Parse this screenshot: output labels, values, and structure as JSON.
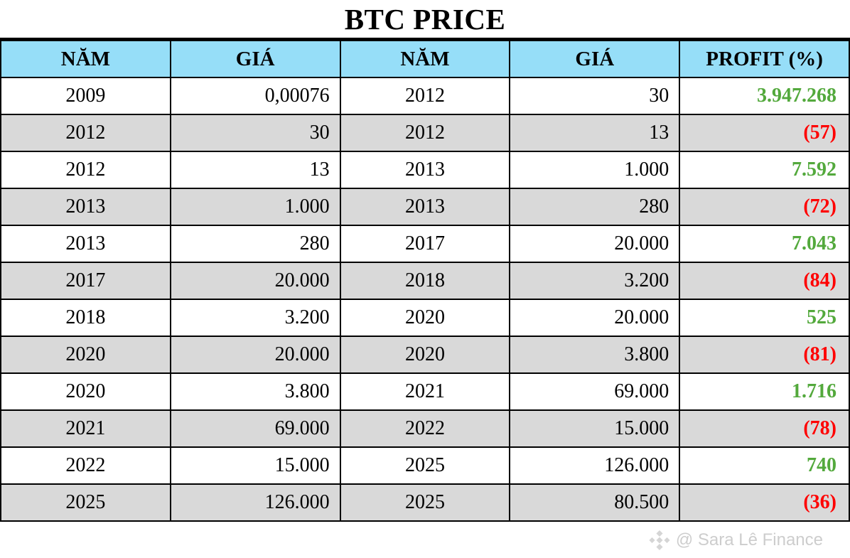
{
  "title": "BTC PRICE",
  "colors": {
    "header_bg": "#96def8",
    "row_alt_bg": "#d9d9d9",
    "row_bg": "#ffffff",
    "profit_positive": "#53a93c",
    "profit_negative": "#ff0000",
    "border": "#000000",
    "watermark_gray": "#c9c9c9"
  },
  "watermark": {
    "icon": "binance-diamond-icon",
    "text": "@ Sara Lê Finance"
  },
  "chart_data": {
    "type": "table",
    "title": "BTC PRICE",
    "columns": [
      "NĂM",
      "GIÁ",
      "NĂM",
      "GIÁ",
      "PROFIT (%)"
    ],
    "layout_hints": {
      "alternating_rows": true,
      "year_columns_centered": true,
      "price_columns_right_aligned": true,
      "profit_positive_green": true,
      "profit_negative_red_parentheses": true
    },
    "rows": [
      {
        "year1": "2009",
        "price1": "0,00076",
        "year2": "2012",
        "price2": "30",
        "profit": "3.947.268",
        "profit_type": "positive"
      },
      {
        "year1": "2012",
        "price1": "30",
        "year2": "2012",
        "price2": "13",
        "profit": "(57)",
        "profit_type": "negative"
      },
      {
        "year1": "2012",
        "price1": "13",
        "year2": "2013",
        "price2": "1.000",
        "profit": "7.592",
        "profit_type": "positive"
      },
      {
        "year1": "2013",
        "price1": "1.000",
        "year2": "2013",
        "price2": "280",
        "profit": "(72)",
        "profit_type": "negative"
      },
      {
        "year1": "2013",
        "price1": "280",
        "year2": "2017",
        "price2": "20.000",
        "profit": "7.043",
        "profit_type": "positive"
      },
      {
        "year1": "2017",
        "price1": "20.000",
        "year2": "2018",
        "price2": "3.200",
        "profit": "(84)",
        "profit_type": "negative"
      },
      {
        "year1": "2018",
        "price1": "3.200",
        "year2": "2020",
        "price2": "20.000",
        "profit": "525",
        "profit_type": "positive"
      },
      {
        "year1": "2020",
        "price1": "20.000",
        "year2": "2020",
        "price2": "3.800",
        "profit": "(81)",
        "profit_type": "negative"
      },
      {
        "year1": "2020",
        "price1": "3.800",
        "year2": "2021",
        "price2": "69.000",
        "profit": "1.716",
        "profit_type": "positive"
      },
      {
        "year1": "2021",
        "price1": "69.000",
        "year2": "2022",
        "price2": "15.000",
        "profit": "(78)",
        "profit_type": "negative"
      },
      {
        "year1": "2022",
        "price1": "15.000",
        "year2": "2025",
        "price2": "126.000",
        "profit": "740",
        "profit_type": "positive"
      },
      {
        "year1": "2025",
        "price1": "126.000",
        "year2": "2025",
        "price2": "80.500",
        "profit": "(36)",
        "profit_type": "negative"
      }
    ]
  }
}
